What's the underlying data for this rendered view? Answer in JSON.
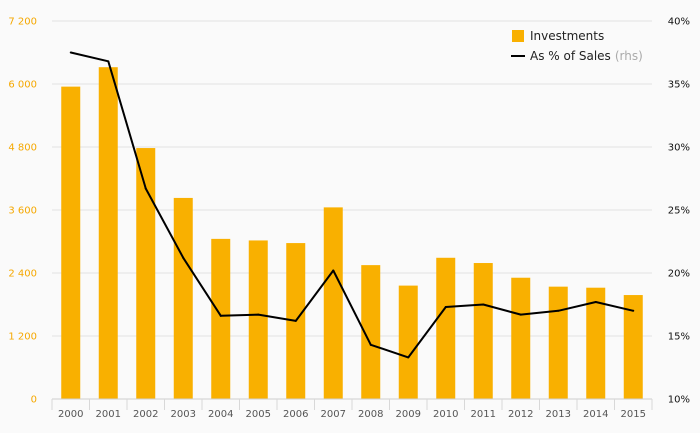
{
  "chart_data": {
    "type": "bar",
    "categories": [
      "2000",
      "2001",
      "2002",
      "2003",
      "2004",
      "2005",
      "2006",
      "2007",
      "2008",
      "2009",
      "2010",
      "2011",
      "2012",
      "2013",
      "2014",
      "2015"
    ],
    "series": [
      {
        "name": "Investments",
        "type": "bar",
        "axis": "left",
        "color": "#f9b000",
        "values": [
          5950,
          6320,
          4780,
          3830,
          3050,
          3020,
          2970,
          3650,
          2550,
          2160,
          2690,
          2590,
          2310,
          2140,
          2120,
          1980
        ]
      },
      {
        "name": "As % of Sales",
        "name_note": "(rhs)",
        "type": "line",
        "axis": "right",
        "color": "#000000",
        "values": [
          37.5,
          36.8,
          26.7,
          21.2,
          16.6,
          16.7,
          16.2,
          20.2,
          14.3,
          13.3,
          17.3,
          17.5,
          16.7,
          17.0,
          17.7,
          17.0
        ]
      }
    ],
    "left_axis": {
      "ticks": [
        "0",
        "1 200",
        "2 400",
        "3 600",
        "4 800",
        "6 000",
        "7 200"
      ],
      "ylim": [
        0,
        7200
      ],
      "tick_color": "#f5a800"
    },
    "right_axis": {
      "ticks": [
        "10%",
        "15%",
        "20%",
        "25%",
        "30%",
        "35%",
        "40%"
      ],
      "ylim": [
        10,
        40
      ]
    },
    "grid": "horizontal",
    "legend_position": "top-right"
  }
}
